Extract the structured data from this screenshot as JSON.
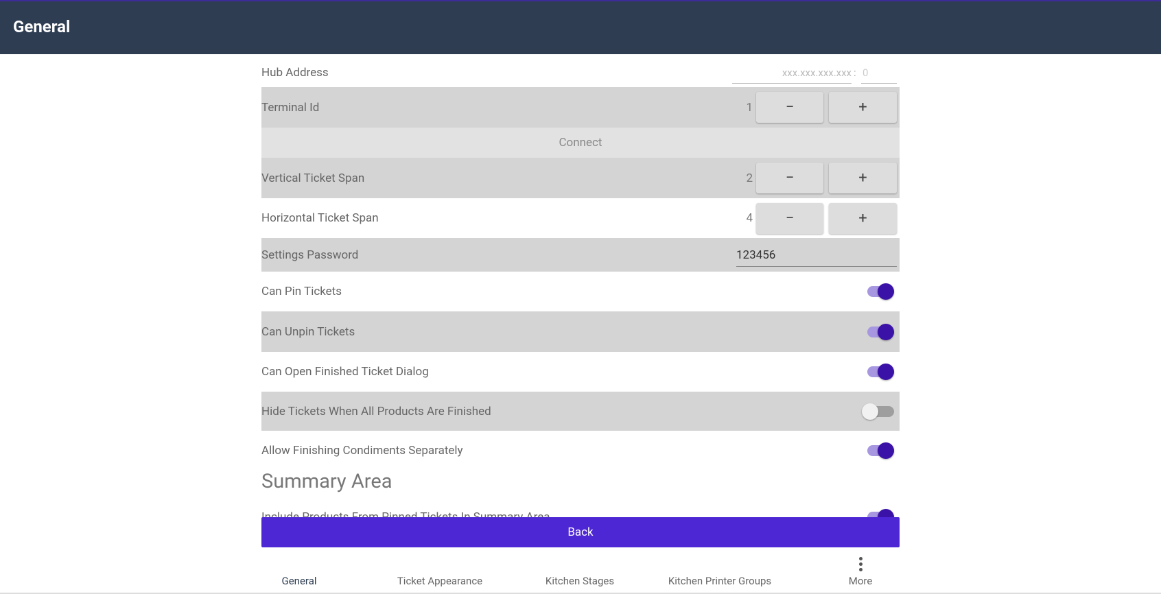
{
  "header": {
    "title": "General"
  },
  "settings": [
    {
      "kind": "address",
      "label": "Hub Address",
      "placeholder": "xxx.xxx.xxx.xxx",
      "separator": ":",
      "port_placeholder": "0",
      "background": "#ffffff"
    },
    {
      "kind": "stepper",
      "label": "Terminal Id",
      "value": 1,
      "background": "#d4d4d4"
    },
    {
      "kind": "button",
      "label": "Connect",
      "background": "#e2e2e2"
    },
    {
      "kind": "stepper",
      "label": "Vertical Ticket Span",
      "value": 2,
      "background": "#d4d4d4"
    },
    {
      "kind": "stepper",
      "label": "Horizontal Ticket Span",
      "value": 4,
      "background": "#ffffff"
    },
    {
      "kind": "text",
      "label": "Settings Password",
      "value": "123456",
      "background": "#d4d4d4"
    },
    {
      "kind": "toggle",
      "label": "Can Pin Tickets",
      "on": true,
      "background": "#ffffff"
    },
    {
      "kind": "toggle",
      "label": "Can Unpin Tickets",
      "on": true,
      "background": "#d4d4d4"
    },
    {
      "kind": "toggle",
      "label": "Can Open Finished Ticket Dialog",
      "on": true,
      "background": "#ffffff"
    },
    {
      "kind": "toggle",
      "label": "Hide Tickets When All Products Are Finished",
      "on": false,
      "background": "#d4d4d4"
    },
    {
      "kind": "toggle",
      "label": "Allow Finishing Condiments Separately",
      "on": true,
      "background": "#ffffff"
    }
  ],
  "section": {
    "title": "Summary Area",
    "settings": [
      {
        "kind": "toggle",
        "label": "Include Products From Pinned Tickets In Summary Area",
        "on": true
      }
    ]
  },
  "stepper_buttons": {
    "minus": "−",
    "plus": "+"
  },
  "back_button": "Back",
  "tabs": [
    "General",
    "Ticket Appearance",
    "Kitchen Stages",
    "Kitchen Printer Groups",
    "More"
  ],
  "active_tab": 0
}
